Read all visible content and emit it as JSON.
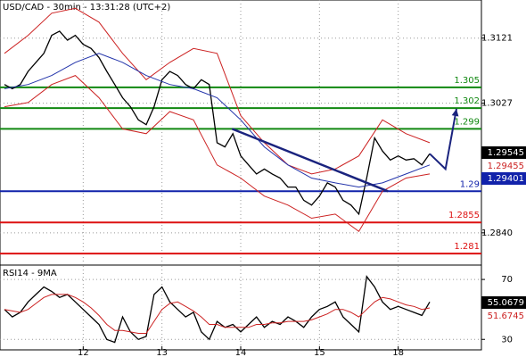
{
  "chart_data": [
    {
      "type": "line",
      "title": "USD/CAD - 30min - 13:31:28 (UTC+2)",
      "xlim": [
        0,
        60
      ],
      "xticks": [
        {
          "value": 10,
          "label": "12"
        },
        {
          "value": 20,
          "label": "13"
        },
        {
          "value": 30,
          "label": "14"
        },
        {
          "value": 40,
          "label": "15"
        },
        {
          "value": 50,
          "label": "18"
        }
      ],
      "ylim": [
        1.2796,
        1.3176
      ],
      "yticks": [
        1.3121,
        1.3027,
        {
          "value": 1.284,
          "label": "1.2840"
        }
      ],
      "grid": true,
      "series": [
        {
          "color": "#000000",
          "x": [
            0,
            1,
            2,
            3,
            4,
            5,
            6,
            7,
            8,
            9,
            10,
            11,
            12,
            13,
            14,
            15,
            16,
            17,
            18,
            19,
            20,
            21,
            22,
            23,
            24,
            25,
            26,
            27,
            28,
            29,
            30,
            31,
            32,
            33,
            34,
            35,
            36,
            37,
            38,
            39,
            40,
            41,
            42,
            43,
            44,
            45,
            46,
            47,
            48,
            49,
            50,
            51,
            52,
            53,
            54
          ],
          "values": [
            1.3054,
            1.3048,
            1.3054,
            1.3073,
            1.3086,
            1.3099,
            1.3125,
            1.3131,
            1.3118,
            1.3125,
            1.3112,
            1.3106,
            1.3093,
            1.3073,
            1.3054,
            1.3035,
            1.3022,
            1.3003,
            1.2996,
            1.3022,
            1.3061,
            1.3073,
            1.3067,
            1.3054,
            1.3048,
            1.3061,
            1.3054,
            1.297,
            1.2964,
            1.2983,
            1.2951,
            1.2938,
            1.2925,
            1.2932,
            1.2925,
            1.2919,
            1.2906,
            1.2906,
            1.2887,
            1.288,
            1.2893,
            1.2912,
            1.2906,
            1.2887,
            1.288,
            1.2867,
            1.2919,
            1.2977,
            1.2958,
            1.2945,
            1.2951,
            1.2945,
            1.2947,
            1.2938,
            1.2954
          ]
        },
        {
          "color": "#cc2222",
          "x": [
            0,
            3,
            6,
            9,
            12,
            15,
            18,
            21,
            24,
            27,
            30,
            33,
            36,
            39,
            42,
            45,
            48,
            51,
            54
          ],
          "values": [
            1.3099,
            1.3125,
            1.3157,
            1.3164,
            1.3144,
            1.3099,
            1.3061,
            1.3086,
            1.3106,
            1.3099,
            1.3009,
            1.297,
            1.2938,
            1.2925,
            1.2932,
            1.2951,
            1.3003,
            1.2983,
            1.297
          ]
        },
        {
          "color": "#cc2222",
          "x": [
            0,
            3,
            6,
            9,
            12,
            15,
            18,
            21,
            24,
            27,
            30,
            33,
            36,
            39,
            42,
            45,
            48,
            51,
            54
          ],
          "values": [
            1.3022,
            1.3028,
            1.3054,
            1.3067,
            1.3035,
            1.299,
            1.2983,
            1.3015,
            1.3003,
            1.2938,
            1.2919,
            1.2893,
            1.288,
            1.2861,
            1.2867,
            1.2842,
            1.29,
            1.2919,
            1.2925
          ]
        },
        {
          "color": "#2233aa",
          "x": [
            0,
            3,
            6,
            9,
            12,
            15,
            18,
            21,
            24,
            27,
            30,
            33,
            36,
            39,
            42,
            45,
            48,
            51,
            54
          ],
          "values": [
            1.3048,
            1.3054,
            1.3067,
            1.3086,
            1.3099,
            1.3086,
            1.3067,
            1.3054,
            1.3048,
            1.3035,
            1.3003,
            1.2964,
            1.2938,
            1.2919,
            1.2912,
            1.2906,
            1.2912,
            1.2925,
            1.2938
          ]
        }
      ],
      "levels": [
        {
          "value": 1.305,
          "color": "#118811"
        },
        {
          "value": 1.302,
          "color": "#118811"
        },
        {
          "value": 1.299,
          "color": "#118811"
        },
        {
          "value": 1.29,
          "color": "#1122aa"
        },
        {
          "value": 1.2855,
          "color": "#dd1111"
        },
        {
          "value": 1.281,
          "color": "#dd1111"
        }
      ],
      "trendline": {
        "color": "#1a237e",
        "x": [
          28.9,
          48.7
        ],
        "values": [
          1.299,
          1.29
        ]
      },
      "arrow": {
        "color": "#1a237e",
        "x": [
          54,
          56,
          57.4
        ],
        "values": [
          1.2954,
          1.2932,
          1.3019
        ]
      },
      "price_labels": [
        {
          "value": 1.29545,
          "color": "#000000",
          "boxed": true
        },
        {
          "value": 1.29455,
          "color": "#cc2222",
          "boxed": false
        },
        {
          "value": 1.29401,
          "color": "#1122aa",
          "boxed": true
        }
      ]
    },
    {
      "type": "line",
      "title": "RSI14 - 9MA",
      "ylim": [
        23,
        79
      ],
      "yticks": [
        70,
        30
      ],
      "grid": true,
      "series": [
        {
          "color": "#000000",
          "x": [
            0,
            1,
            2,
            3,
            4,
            5,
            6,
            7,
            8,
            9,
            10,
            11,
            12,
            13,
            14,
            15,
            16,
            17,
            18,
            19,
            20,
            21,
            22,
            23,
            24,
            25,
            26,
            27,
            28,
            29,
            30,
            31,
            32,
            33,
            34,
            35,
            36,
            37,
            38,
            39,
            40,
            41,
            42,
            43,
            44,
            45,
            46,
            47,
            48,
            49,
            50,
            51,
            52,
            53,
            54
          ],
          "values": [
            50,
            45,
            48,
            55,
            60,
            65,
            62,
            58,
            60,
            55,
            50,
            45,
            40,
            30,
            28,
            45,
            35,
            30,
            32,
            60,
            65,
            55,
            50,
            45,
            48,
            35,
            30,
            42,
            38,
            40,
            35,
            40,
            45,
            38,
            42,
            40,
            45,
            42,
            38,
            45,
            50,
            52,
            55,
            45,
            40,
            35,
            72,
            65,
            55,
            50,
            52,
            50,
            48,
            46,
            55
          ]
        },
        {
          "color": "#cc2222",
          "x": [
            0,
            1,
            2,
            3,
            4,
            5,
            6,
            7,
            8,
            9,
            10,
            11,
            12,
            13,
            14,
            15,
            16,
            17,
            18,
            19,
            20,
            21,
            22,
            23,
            24,
            25,
            26,
            27,
            28,
            29,
            30,
            31,
            32,
            33,
            34,
            35,
            36,
            37,
            38,
            39,
            40,
            41,
            42,
            43,
            44,
            45,
            46,
            47,
            48,
            49,
            50,
            51,
            52,
            53,
            54
          ],
          "values": [
            50,
            49,
            48,
            50,
            54,
            58,
            60,
            60,
            60,
            58,
            55,
            51,
            46,
            40,
            36,
            36,
            35,
            34,
            34,
            42,
            50,
            54,
            55,
            52,
            49,
            45,
            40,
            40,
            38,
            38,
            38,
            38,
            40,
            40,
            41,
            41,
            42,
            42,
            42,
            43,
            45,
            47,
            50,
            50,
            48,
            45,
            50,
            55,
            58,
            57,
            55,
            53,
            52,
            50,
            51
          ]
        }
      ],
      "value_labels": [
        {
          "value": 55.0679,
          "color": "#000000",
          "boxed": true
        },
        {
          "value": 51.6745,
          "color": "#cc2222",
          "boxed": false
        }
      ]
    }
  ]
}
